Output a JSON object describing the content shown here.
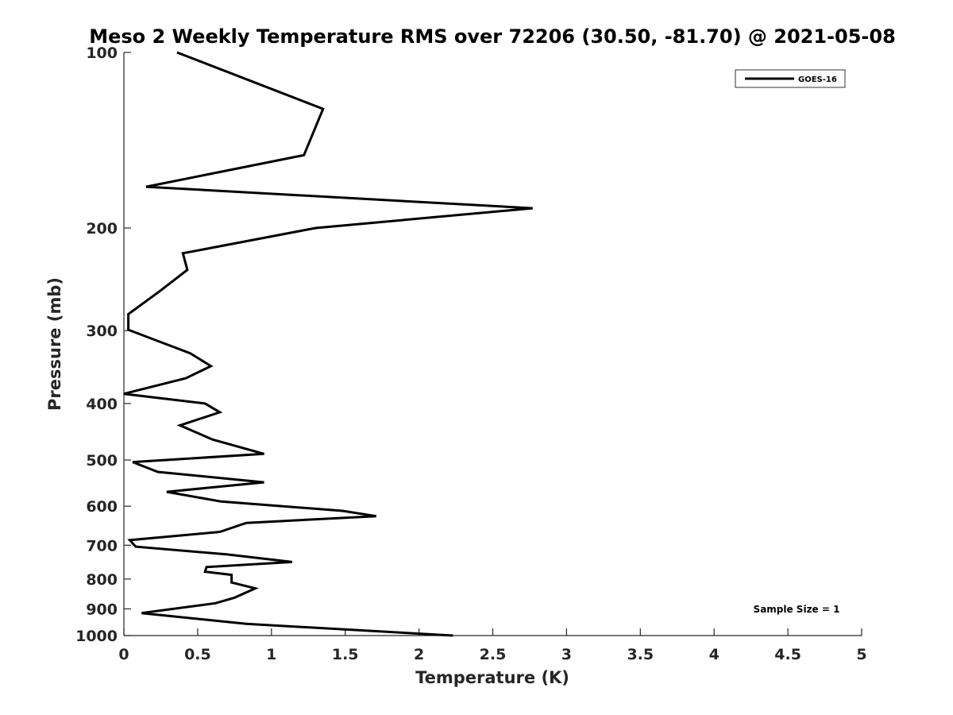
{
  "chart_data": {
    "type": "line",
    "title": "Meso 2 Weekly Temperature RMS over 72206 (30.50, -81.70) @ 2021-05-08",
    "xlabel": "Temperature (K)",
    "ylabel": "Pressure (mb)",
    "xlim": [
      0,
      5
    ],
    "ylim": [
      1000,
      100
    ],
    "yscale": "log",
    "xticks": [
      "0",
      "0.5",
      "1",
      "1.5",
      "2",
      "2.5",
      "3",
      "3.5",
      "4",
      "4.5",
      "5"
    ],
    "yticks": [
      "100",
      "200",
      "300",
      "400",
      "500",
      "600",
      "700",
      "800",
      "900",
      "1000"
    ],
    "legend": "top-right",
    "grid": false,
    "annotation": "Sample Size = 1",
    "series": [
      {
        "name": "GOES-16",
        "color": "#000000",
        "points": [
          [
            0.36,
            100
          ],
          [
            1.35,
            125
          ],
          [
            1.22,
            150
          ],
          [
            0.15,
            170
          ],
          [
            2.77,
            185
          ],
          [
            1.3,
            200
          ],
          [
            0.4,
            221
          ],
          [
            0.43,
            236
          ],
          [
            0.25,
            256
          ],
          [
            0.03,
            281
          ],
          [
            0.03,
            299
          ],
          [
            0.45,
            328
          ],
          [
            0.59,
            345
          ],
          [
            0.42,
            362
          ],
          [
            0.0,
            385
          ],
          [
            0.55,
            400
          ],
          [
            0.65,
            414
          ],
          [
            0.38,
            436
          ],
          [
            0.6,
            461
          ],
          [
            0.95,
            488
          ],
          [
            0.06,
            504
          ],
          [
            0.23,
            524
          ],
          [
            0.95,
            546
          ],
          [
            0.29,
            567
          ],
          [
            0.66,
            589
          ],
          [
            1.48,
            611
          ],
          [
            1.71,
            624
          ],
          [
            0.83,
            641
          ],
          [
            0.65,
            664
          ],
          [
            0.04,
            686
          ],
          [
            0.08,
            704
          ],
          [
            0.7,
            726
          ],
          [
            1.14,
            748
          ],
          [
            0.56,
            763
          ],
          [
            0.55,
            777
          ],
          [
            0.73,
            787
          ],
          [
            0.73,
            811
          ],
          [
            0.89,
            830
          ],
          [
            0.75,
            861
          ],
          [
            0.62,
            880
          ],
          [
            0.12,
            915
          ],
          [
            0.83,
            955
          ],
          [
            2.23,
            1000
          ]
        ]
      }
    ]
  }
}
